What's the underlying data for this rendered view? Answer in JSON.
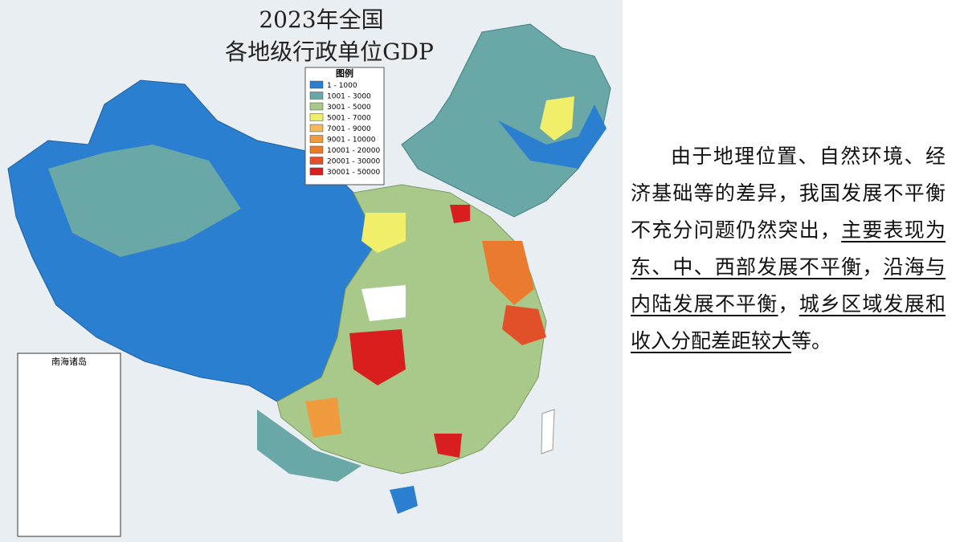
{
  "map": {
    "title": [
      "2023年全国",
      "各地级行政单位GDP"
    ],
    "legend": {
      "title": "图例",
      "items": [
        {
          "label": "1 - 1000",
          "color": "#2b7fd0"
        },
        {
          "label": "1001 - 3000",
          "color": "#6aa8a8"
        },
        {
          "label": "3001 - 5000",
          "color": "#a9c98a"
        },
        {
          "label": "5001 - 7000",
          "color": "#f1ee6a"
        },
        {
          "label": "7001 - 9000",
          "color": "#f3b95a"
        },
        {
          "label": "9001 - 10000",
          "color": "#ef9a3c"
        },
        {
          "label": "10001 - 20000",
          "color": "#ea7b2e"
        },
        {
          "label": "20001 - 30000",
          "color": "#e2502a"
        },
        {
          "label": "30001 - 50000",
          "color": "#d81e1e"
        }
      ]
    },
    "inset_label": "南海诸岛"
  },
  "paragraph": [
    {
      "text": "由于地理位置、自然环境、经济基础等的差异，我国发展不平衡不充分问题仍然突出，",
      "underline": false
    },
    {
      "text": "主要表现为东、中、西部发展不平衡",
      "underline": true
    },
    {
      "text": "，",
      "underline": false
    },
    {
      "text": "沿海与内陆发展不平衡",
      "underline": true
    },
    {
      "text": "，",
      "underline": false
    },
    {
      "text": "城乡区域发展和收入分配差距较大",
      "underline": true
    },
    {
      "text": "等。",
      "underline": false
    }
  ]
}
